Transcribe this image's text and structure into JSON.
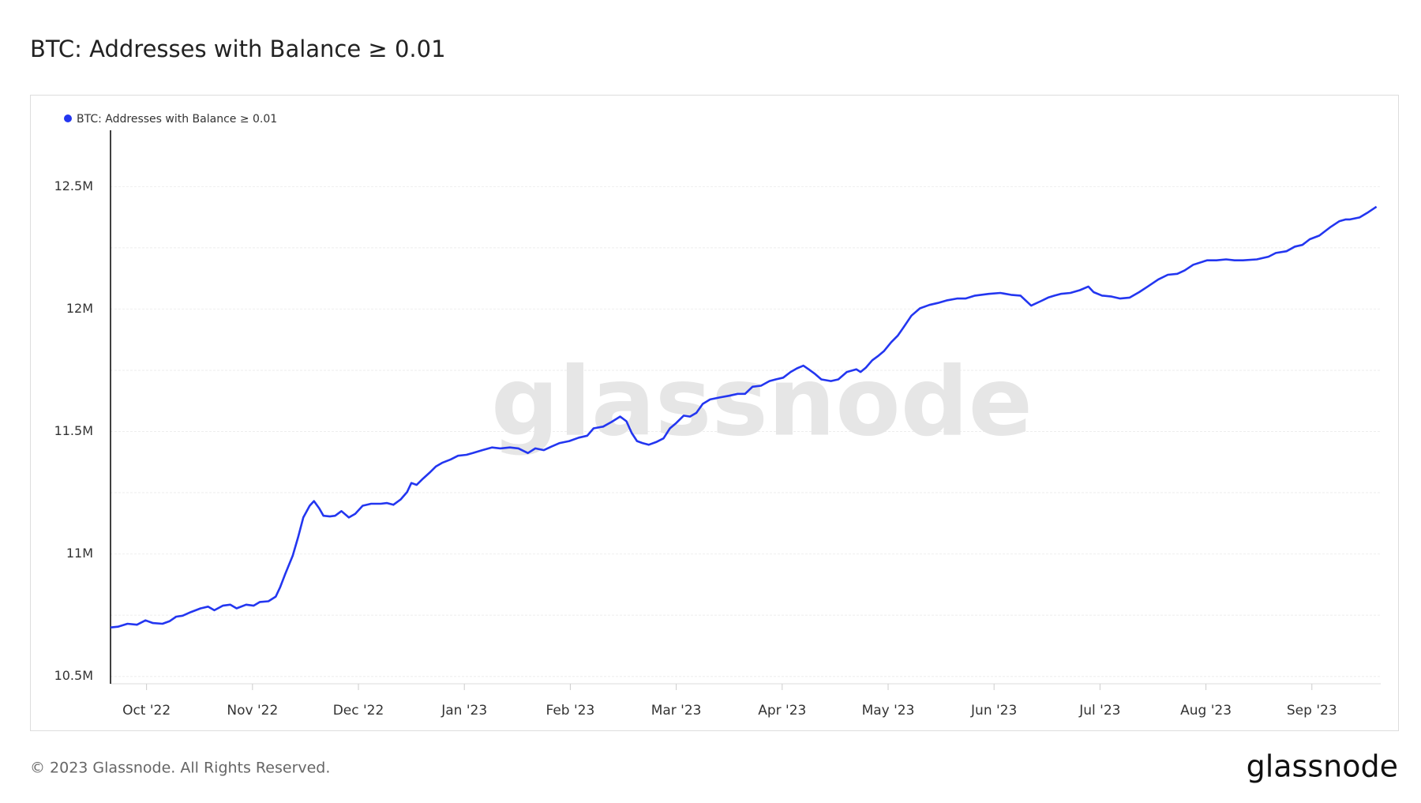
{
  "chart_data": {
    "type": "line",
    "title": "BTC: Addresses with Balance ≥ 0.01",
    "watermark": "glassnode",
    "footer": "© 2023 Glassnode. All Rights Reserved.",
    "logo": "glassnode",
    "x": [
      -0.34,
      -0.27,
      -0.18,
      -0.09,
      -0.01,
      0.06,
      0.15,
      0.22,
      0.28,
      0.34,
      0.42,
      0.51,
      0.58,
      0.64,
      0.72,
      0.79,
      0.85,
      0.94,
      1.01,
      1.07,
      1.15,
      1.22,
      1.26,
      1.31,
      1.38,
      1.43,
      1.48,
      1.54,
      1.58,
      1.63,
      1.67,
      1.73,
      1.78,
      1.84,
      1.91,
      1.97,
      2.04,
      2.12,
      2.21,
      2.27,
      2.33,
      2.4,
      2.46,
      2.5,
      2.55,
      2.61,
      2.67,
      2.73,
      2.79,
      2.87,
      2.94,
      3.02,
      3.08,
      3.17,
      3.26,
      3.34,
      3.43,
      3.51,
      3.6,
      3.67,
      3.75,
      3.82,
      3.9,
      3.99,
      4.08,
      4.16,
      4.22,
      4.31,
      4.39,
      4.47,
      4.53,
      4.58,
      4.63,
      4.68,
      4.74,
      4.81,
      4.88,
      4.94,
      5.0,
      5.07,
      5.13,
      5.19,
      5.25,
      5.32,
      5.41,
      5.5,
      5.58,
      5.65,
      5.72,
      5.8,
      5.88,
      5.94,
      6.01,
      6.08,
      6.14,
      6.2,
      6.25,
      6.31,
      6.37,
      6.46,
      6.53,
      6.61,
      6.7,
      6.74,
      6.79,
      6.85,
      6.91,
      6.96,
      7.03,
      7.09,
      7.15,
      7.22,
      7.3,
      7.39,
      7.47,
      7.56,
      7.65,
      7.73,
      7.82,
      7.95,
      8.06,
      8.16,
      8.25,
      8.35,
      8.44,
      8.51,
      8.57,
      8.63,
      8.72,
      8.81,
      8.89,
      8.94,
      9.02,
      9.11,
      9.19,
      9.28,
      9.37,
      9.45,
      9.55,
      9.64,
      9.73,
      9.8,
      9.88,
      10.01,
      10.1,
      10.19,
      10.27,
      10.35,
      10.48,
      10.59,
      10.66,
      10.76,
      10.84,
      10.91,
      10.98,
      11.07,
      11.17,
      11.26,
      11.32,
      11.36,
      11.45,
      11.52,
      11.61
    ],
    "series": [
      {
        "name": "BTC: Addresses with Balance ≥ 0.01",
        "color": "#2336f0",
        "values": [
          10.7,
          10.703,
          10.715,
          10.711,
          10.729,
          10.718,
          10.715,
          10.726,
          10.744,
          10.748,
          10.763,
          10.778,
          10.785,
          10.77,
          10.789,
          10.793,
          10.778,
          10.793,
          10.789,
          10.804,
          10.807,
          10.826,
          10.863,
          10.919,
          10.993,
          11.067,
          11.149,
          11.197,
          11.216,
          11.186,
          11.156,
          11.153,
          11.156,
          11.175,
          11.149,
          11.164,
          11.197,
          11.205,
          11.205,
          11.208,
          11.201,
          11.223,
          11.253,
          11.29,
          11.282,
          11.308,
          11.331,
          11.357,
          11.372,
          11.386,
          11.401,
          11.405,
          11.412,
          11.424,
          11.435,
          11.431,
          11.435,
          11.431,
          11.412,
          11.431,
          11.424,
          11.438,
          11.453,
          11.461,
          11.475,
          11.483,
          11.513,
          11.52,
          11.539,
          11.561,
          11.542,
          11.494,
          11.461,
          11.453,
          11.446,
          11.457,
          11.472,
          11.513,
          11.535,
          11.565,
          11.561,
          11.576,
          11.613,
          11.631,
          11.639,
          11.646,
          11.654,
          11.654,
          11.683,
          11.687,
          11.706,
          11.713,
          11.72,
          11.743,
          11.758,
          11.769,
          11.754,
          11.735,
          11.713,
          11.706,
          11.713,
          11.743,
          11.754,
          11.743,
          11.761,
          11.791,
          11.81,
          11.828,
          11.865,
          11.891,
          11.928,
          11.973,
          12.003,
          12.017,
          12.025,
          12.036,
          12.043,
          12.043,
          12.055,
          12.062,
          12.066,
          12.058,
          12.055,
          12.014,
          12.032,
          12.047,
          12.055,
          12.062,
          12.066,
          12.077,
          12.092,
          12.069,
          12.055,
          12.051,
          12.043,
          12.047,
          12.069,
          12.092,
          12.121,
          12.14,
          12.144,
          12.158,
          12.181,
          12.199,
          12.199,
          12.203,
          12.199,
          12.199,
          12.203,
          12.214,
          12.229,
          12.236,
          12.255,
          12.262,
          12.285,
          12.3,
          12.333,
          12.359,
          12.366,
          12.366,
          12.374,
          12.392,
          12.418
        ]
      }
    ],
    "xlim": [
      -0.34,
      11.65
    ],
    "xticks": [
      {
        "value": 0,
        "label": "Oct '22"
      },
      {
        "value": 1,
        "label": "Nov '22"
      },
      {
        "value": 2,
        "label": "Dec '22"
      },
      {
        "value": 3,
        "label": "Jan '23"
      },
      {
        "value": 4,
        "label": "Feb '23"
      },
      {
        "value": 5,
        "label": "Mar '23"
      },
      {
        "value": 6,
        "label": "Apr '23"
      },
      {
        "value": 7,
        "label": "May '23"
      },
      {
        "value": 8,
        "label": "Jun '23"
      },
      {
        "value": 9,
        "label": "Jul '23"
      },
      {
        "value": 10,
        "label": "Aug '23"
      },
      {
        "value": 11,
        "label": "Sep '23"
      }
    ],
    "ylim": [
      10.47,
      12.73
    ],
    "yticks": [
      {
        "value": 10.5,
        "label": "10.5M"
      },
      {
        "value": 11,
        "label": "11M"
      },
      {
        "value": 11.5,
        "label": "11.5M"
      },
      {
        "value": 12,
        "label": "12M"
      },
      {
        "value": 12.5,
        "label": "12.5M"
      }
    ],
    "minor_gridlines": [
      10.75,
      11.25,
      11.75,
      12.25,
      12.75
    ],
    "grid": true
  }
}
